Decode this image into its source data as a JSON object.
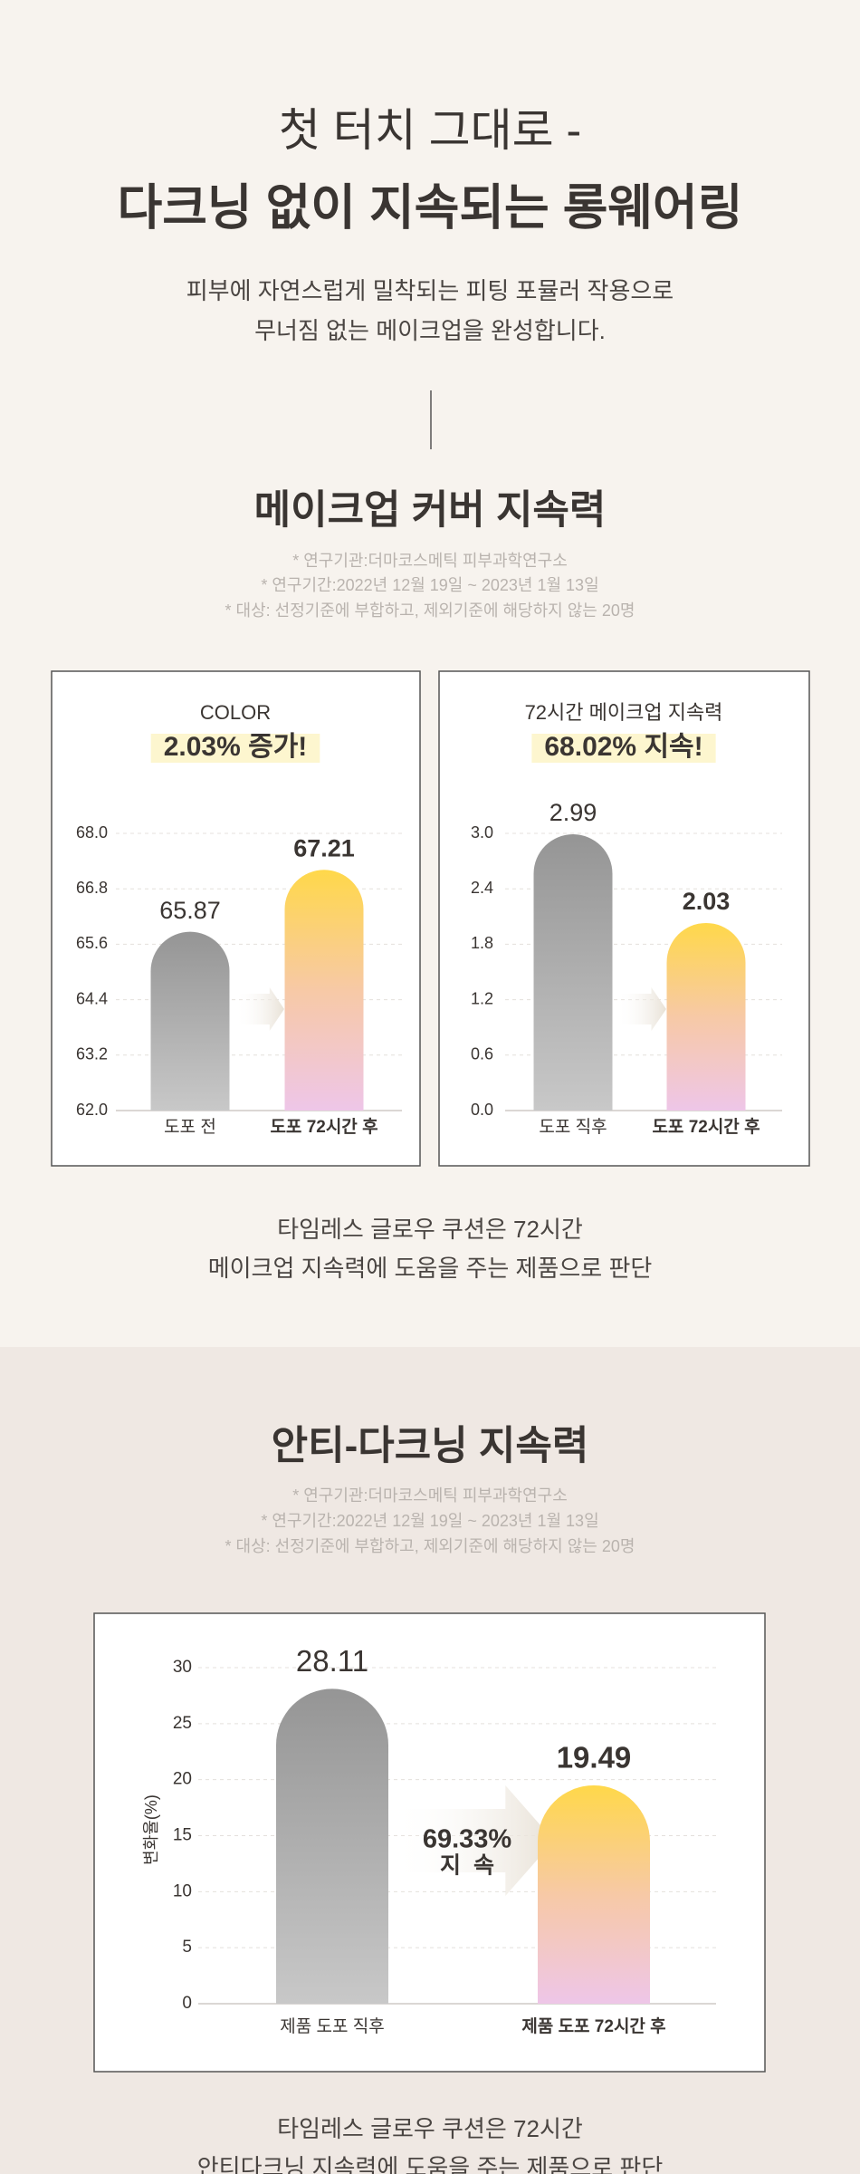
{
  "header": {
    "title_line1": "첫 터치 그대로 -",
    "title_line2": "다크닝 없이 지속되는 롱웨어링",
    "description": [
      "피부에 자연스럽게 밀착되는 피팅 포뮬러 작용으로",
      "무너짐 없는 메이크업을 완성합니다."
    ]
  },
  "sections": [
    {
      "title": "메이크업 커버 지속력",
      "notes": [
        "* 연구기관:더마코스메틱 피부과학연구소",
        "* 연구기간:2022년 12월 19일 ~ 2023년 1월 13일",
        "* 대상: 선정기준에 부합하고, 제외기준에 해당하지 않는 20명"
      ],
      "conclusion": [
        "타임레스 글로우 쿠션은 72시간",
        "메이크업 지속력에 도움을 주는 제품으로 판단"
      ]
    },
    {
      "title": "안티-다크닝 지속력",
      "notes": [
        "* 연구기관:더마코스메틱 피부과학연구소",
        "* 연구기간:2022년 12월 19일 ~ 2023년 1월 13일",
        "* 대상: 선정기준에 부합하고, 제외기준에 해당하지 않는 20명"
      ],
      "conclusion": [
        "타임레스 글로우 쿠션은 72시간",
        "안티다크닝 지속력에 도움을 주는 제품으로 판단"
      ]
    }
  ],
  "chart_data": [
    {
      "type": "bar",
      "title": "COLOR",
      "highlight": "2.03% 증가!",
      "categories": [
        "도포 전",
        "도포 72시간 후"
      ],
      "values": [
        65.87,
        67.21
      ],
      "colors": [
        [
          "#959595",
          "#c8c8c8"
        ],
        [
          "#ffd84a",
          "#f7c9a6",
          "#eec6e8"
        ]
      ],
      "ylim": [
        62,
        68
      ],
      "yticks": [
        {
          "value": 68,
          "label": "68.0"
        },
        66.8,
        65.6,
        64.4,
        63.2,
        {
          "value": 62,
          "label": "62.0"
        }
      ],
      "grid": true
    },
    {
      "type": "bar",
      "title": "72시간 메이크업 지속력",
      "highlight": "68.02% 지속!",
      "categories": [
        "도포 직후",
        "도포 72시간 후"
      ],
      "values": [
        2.99,
        2.03
      ],
      "colors": [
        [
          "#959595",
          "#c8c8c8"
        ],
        [
          "#ffd84a",
          "#f7c9a6",
          "#eec6e8"
        ]
      ],
      "ylim": [
        0,
        3
      ],
      "yticks": [
        {
          "value": 3,
          "label": "3.0"
        },
        2.4,
        1.8,
        1.2,
        0.6,
        {
          "value": 0,
          "label": "0.0"
        }
      ],
      "grid": true
    },
    {
      "type": "bar",
      "y_label": "변화율(%)",
      "annotation": [
        "69.33%",
        "지  속"
      ],
      "categories": [
        "제품 도포 직후",
        "제품 도포 72시간 후"
      ],
      "values": [
        28.11,
        19.49
      ],
      "colors": [
        [
          "#959595",
          "#c8c8c8"
        ],
        [
          "#ffd84a",
          "#f7c9a6",
          "#eec6e8"
        ]
      ],
      "ylim": [
        0,
        30
      ],
      "yticks": [
        30,
        25,
        20,
        15,
        10,
        5,
        0
      ],
      "grid": true
    }
  ]
}
